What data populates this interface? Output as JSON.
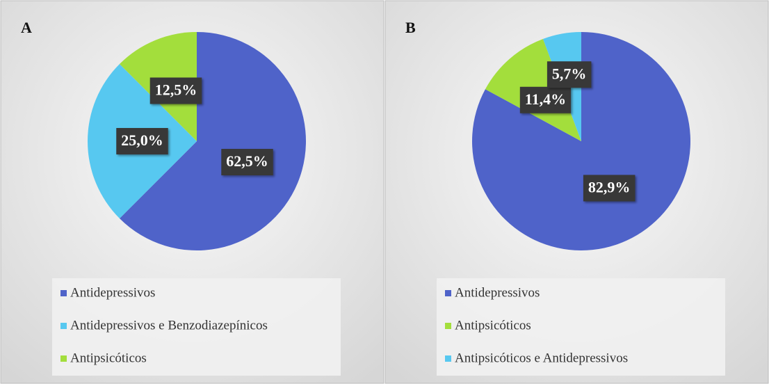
{
  "chart_data": [
    {
      "type": "pie",
      "title": "A",
      "categories": [
        "Antidepressivos",
        "Antidepressivos e Benzodiazepínicos",
        "Antipsicóticos"
      ],
      "values": [
        62.5,
        25.0,
        12.5
      ],
      "value_labels": [
        "62,5%",
        "25,0%",
        "12,5%"
      ],
      "colors": [
        "#4f63c9",
        "#57c8f0",
        "#a3de3c"
      ]
    },
    {
      "type": "pie",
      "title": "B",
      "categories": [
        "Antidepressivos",
        "Antipsicóticos",
        "Antipsicóticos e Antidepressivos"
      ],
      "values": [
        82.9,
        11.4,
        5.7
      ],
      "value_labels": [
        "82,9%",
        "11,4%",
        "5,7%"
      ],
      "colors": [
        "#4f63c9",
        "#a3de3c",
        "#57c8f0"
      ]
    }
  ]
}
